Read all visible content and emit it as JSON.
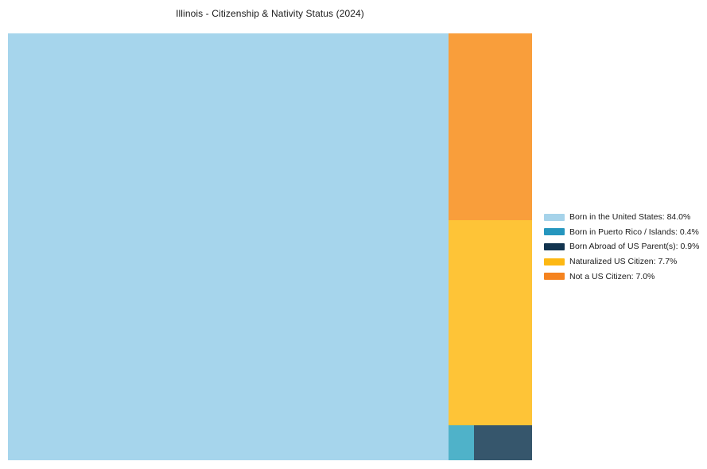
{
  "chart_data": {
    "type": "treemap",
    "title": "Illinois - Citizenship & Nativity Status (2024)",
    "unit": "%",
    "legend_position": "right-center",
    "grid": false,
    "items": [
      {
        "id": "born-in-the-united-states",
        "label": "Born in the United States",
        "value": 84.0,
        "legend_text": "Born in the United States: 84.0%",
        "legend_color": "#a6d3ea",
        "tile_color": "#a6d5ec"
      },
      {
        "id": "born-in-puerto-rico-islands",
        "label": "Born in Puerto Rico / Islands",
        "value": 0.4,
        "legend_text": "Born in Puerto Rico / Islands: 0.4%",
        "legend_color": "#2596be",
        "tile_color": "#4fb2c9"
      },
      {
        "id": "born-abroad-of-us-parents",
        "label": "Born Abroad of US Parent(s)",
        "value": 0.9,
        "legend_text": "Born Abroad of US Parent(s): 0.9%",
        "legend_color": "#12344f",
        "tile_color": "#36566c"
      },
      {
        "id": "naturalized-us-citizen",
        "label": "Naturalized US Citizen",
        "value": 7.7,
        "legend_text": "Naturalized US Citizen: 7.7%",
        "legend_color": "#fdb813",
        "tile_color": "#fec437"
      },
      {
        "id": "not-a-us-citizen",
        "label": "Not a US Citizen",
        "value": 7.0,
        "legend_text": "Not a US Citizen: 7.0%",
        "legend_color": "#f5831f",
        "tile_color": "#f99e3b"
      }
    ],
    "layout": {
      "main_tile": 0,
      "right_column_top_to_bottom": [
        4,
        3
      ],
      "bottom_row_left_to_right": [
        1,
        2
      ]
    }
  }
}
